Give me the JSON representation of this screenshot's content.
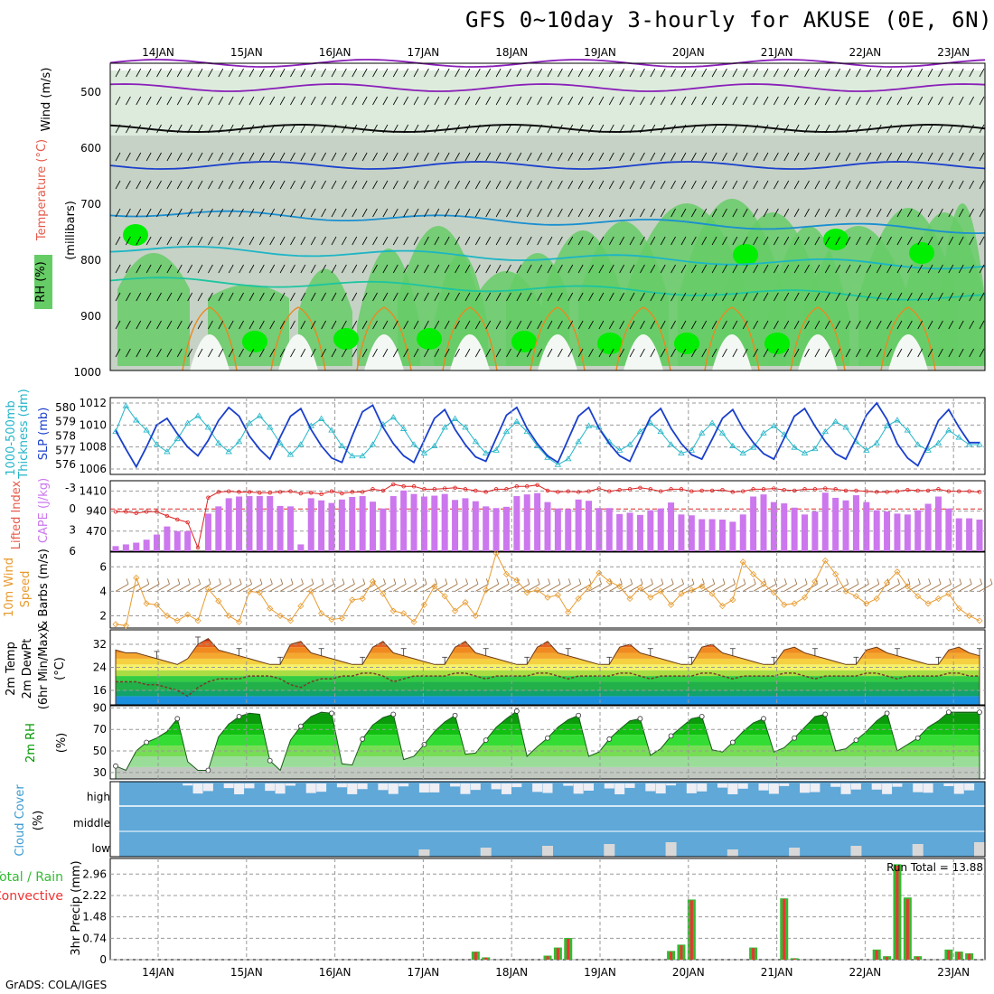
{
  "title": "GFS 0~10day 3-hourly for AKUSE (0E, 6N)",
  "credit": "GrADS: COLA/IGES",
  "days": [
    "14JAN",
    "15JAN",
    "16JAN",
    "17JAN",
    "18JAN",
    "19JAN",
    "20JAN",
    "21JAN",
    "22JAN",
    "23JAN"
  ],
  "colors": {
    "rh_light": "#d4e6d4",
    "rh_mid": "#c0ccc0",
    "rh_green": "#66cc66",
    "rh_bright": "#00ee00",
    "slp": "#1a3fcc",
    "thickness": "#22b5c8",
    "cape": "#cc77ee",
    "li": "#dd2222",
    "wind": "#e89a2e",
    "barb": "#9a6a3a",
    "rh2m": "#009900",
    "cloud": "#5fa8d8",
    "cloud_gap": "#eeeef5",
    "precip_total": "#33bb33",
    "precip_conv": "#ee3333"
  },
  "panels": {
    "upper": {
      "label_rh": "RH (%)",
      "label_temp": "Temperature",
      "label_temp_unit": "(°C)",
      "label_wind": "Wind",
      "label_wind_unit": "(m/s)",
      "yunit": "(millibars)",
      "levels": [
        "500",
        "600",
        "700",
        "800",
        "900",
        "1000"
      ]
    },
    "slp": {
      "label_thick": "1000-500mb",
      "label_thick2": "Thickness (dm)",
      "label_slp": "SLP (mb)",
      "left_ticks": [
        "580",
        "579",
        "578",
        "577",
        "576"
      ],
      "right_ticks": [
        "1012",
        "1010",
        "1008",
        "1006"
      ]
    },
    "cape": {
      "label_li": "Lifted Index",
      "label_cape": "CAPE (J/kg)",
      "left_ticks": [
        "-3",
        "0",
        "3",
        "6"
      ],
      "right_ticks": [
        "1410",
        "940",
        "470"
      ]
    },
    "wind10": {
      "label1": "10m Wind",
      "label2": "Speed",
      "label3": "& Barbs",
      "unit": "(m/s)",
      "ticks": [
        "6",
        "4",
        "2"
      ]
    },
    "temp2m": {
      "label1": "2m Temp",
      "label2": "2m DewPt",
      "label3": "(6hr Min/Max)",
      "unit": "(°C)",
      "ticks": [
        "32",
        "24",
        "16"
      ]
    },
    "rh2m": {
      "label": "2m RH",
      "unit": "(%)",
      "ticks": [
        "90",
        "70",
        "50",
        "30"
      ]
    },
    "cloud": {
      "label": "Cloud Cover",
      "unit": "(%)",
      "levels": [
        "high",
        "middle",
        "low"
      ]
    },
    "precip": {
      "label1": "Total / Rain",
      "label2": "Convective",
      "unit": "3hr Precip (mm)",
      "ticks": [
        "2.96",
        "2.22",
        "1.48",
        "0.74",
        "0"
      ],
      "run_total": "Run Total = 13.88"
    }
  },
  "chart_data": [
    {
      "type": "line",
      "name": "slp_thickness",
      "ylabel_left": "1000-500mb Thickness (dm)",
      "ylabel_right": "SLP (mb)",
      "series": [
        {
          "name": "SLP (mb)",
          "axis": "right",
          "ylim": [
            1006,
            1012
          ],
          "values": [
            1009.5,
            1007.8,
            1006.2,
            1008.0,
            1010.0,
            1010.6,
            1009.2,
            1008.0,
            1007.2,
            1008.6,
            1010.4,
            1011.6,
            1010.8,
            1009.0,
            1007.8,
            1006.9,
            1008.9,
            1010.8,
            1011.5,
            1009.6,
            1008.1,
            1007.0,
            1006.6,
            1009.0,
            1011.2,
            1011.8,
            1009.8,
            1008.3,
            1007.2,
            1006.6,
            1008.6,
            1010.6,
            1011.4,
            1009.6,
            1008.2,
            1007.1,
            1006.7,
            1008.8,
            1010.9,
            1011.6,
            1009.7,
            1008.3,
            1007.2,
            1006.6,
            1008.7,
            1010.8,
            1011.6,
            1009.7,
            1008.3,
            1007.2,
            1006.7,
            1008.7,
            1010.7,
            1011.5,
            1009.7,
            1008.3,
            1007.3,
            1006.9,
            1008.7,
            1010.6,
            1011.4,
            1009.7,
            1008.4,
            1007.4,
            1006.9,
            1008.8,
            1010.8,
            1011.5,
            1009.9,
            1008.5,
            1007.4,
            1006.9,
            1008.8,
            1010.9,
            1012.0,
            1010.5,
            1008.3,
            1007.0,
            1006.3,
            1008.2,
            1010.4,
            1011.4,
            1009.8,
            1008.4,
            1008.4
          ]
        },
        {
          "name": "Thickness (dm)",
          "axis": "left",
          "ylim": [
            575.7,
            580.3
          ],
          "values": [
            578.3,
            580.1,
            579.1,
            578.4,
            577.4,
            576.9,
            577.8,
            578.9,
            579.4,
            578.6,
            577.5,
            576.9,
            577.6,
            578.9,
            579.4,
            578.6,
            577.5,
            576.7,
            577.4,
            578.7,
            579.2,
            578.4,
            577.3,
            576.6,
            576.6,
            577.4,
            578.8,
            579.3,
            578.5,
            577.4,
            576.8,
            577.3,
            578.6,
            579.2,
            578.6,
            577.6,
            576.8,
            577.0,
            578.3,
            579.0,
            578.3,
            577.3,
            576.5,
            576.0,
            576.4,
            577.6,
            578.7,
            578.6,
            577.6,
            577.0,
            577.4,
            578.3,
            578.9,
            578.3,
            577.4,
            576.8,
            577.0,
            578.2,
            578.9,
            578.2,
            577.3,
            576.8,
            577.2,
            578.2,
            578.7,
            578.1,
            577.2,
            576.8,
            577.1,
            578.3,
            579.0,
            578.6,
            577.6,
            577.0,
            577.5,
            578.7,
            579.1,
            578.4,
            577.4,
            577.0,
            577.5,
            578.4,
            577.9,
            577.4,
            577.4
          ]
        }
      ]
    },
    {
      "type": "bar",
      "name": "cape_li",
      "ylabel_left": "Lifted Index",
      "ylabel_right": "CAPE (J/kg)",
      "ylim_cape": [
        0,
        1650
      ],
      "ylim_li": [
        6,
        -4
      ],
      "cape": [
        120,
        160,
        200,
        270,
        390,
        580,
        470,
        470,
        0,
        880,
        1050,
        1240,
        1280,
        1290,
        1290,
        1290,
        1060,
        1050,
        160,
        1240,
        1190,
        1130,
        1210,
        1270,
        1290,
        1160,
        1000,
        1290,
        1420,
        1340,
        1280,
        1300,
        1340,
        1200,
        1240,
        1170,
        1050,
        1010,
        1040,
        1290,
        1330,
        1360,
        1150,
        1000,
        990,
        1210,
        1180,
        1010,
        1010,
        870,
        900,
        850,
        960,
        1000,
        1140,
        860,
        840,
        750,
        750,
        740,
        690,
        860,
        1280,
        1330,
        1150,
        1120,
        1020,
        860,
        930,
        1370,
        1250,
        1190,
        1310,
        1150,
        960,
        930,
        880,
        860,
        960,
        1110,
        1280,
        1000,
        770,
        770,
        740
      ],
      "li": [
        0.4,
        0.4,
        0.6,
        0.4,
        0.4,
        1.0,
        1.5,
        1.9,
        5.5,
        -1.6,
        -2.4,
        -2.5,
        -2.4,
        -2.4,
        -2.3,
        -2.3,
        -2.4,
        -2.5,
        -2.2,
        -2.3,
        -2.1,
        -2.5,
        -2.2,
        -2.4,
        -2.4,
        -2.8,
        -2.6,
        -3.5,
        -3.2,
        -3.2,
        -2.8,
        -2.8,
        -2.9,
        -3.0,
        -2.8,
        -2.6,
        -2.4,
        -2.8,
        -2.8,
        -3.2,
        -3.2,
        -3.4,
        -2.6,
        -2.4,
        -2.5,
        -2.4,
        -2.5,
        -2.9,
        -2.5,
        -2.7,
        -2.8,
        -3.0,
        -2.8,
        -2.5,
        -2.8,
        -2.8,
        -2.5,
        -2.6,
        -2.6,
        -2.7,
        -2.4,
        -2.5,
        -2.8,
        -2.8,
        -2.9,
        -2.7,
        -2.6,
        -2.8,
        -2.8,
        -2.9,
        -2.8,
        -2.6,
        -2.6,
        -2.5,
        -2.4,
        -2.4,
        -2.5,
        -2.7,
        -2.6,
        -2.6,
        -2.8,
        -2.5,
        -2.5,
        -2.5,
        -2.4
      ]
    },
    {
      "type": "line",
      "name": "wind10m",
      "ylabel": "10m Wind Speed & Barbs (m/s)",
      "ylim": [
        1,
        7.2
      ],
      "values": [
        1.3,
        1.2,
        5.1,
        3.0,
        2.9,
        2.0,
        1.6,
        2.1,
        1.6,
        4.2,
        3.2,
        2.0,
        1.5,
        4.0,
        3.9,
        2.6,
        2.0,
        1.6,
        2.8,
        4.0,
        2.2,
        1.7,
        1.8,
        3.3,
        3.4,
        4.8,
        3.8,
        2.4,
        2.2,
        1.5,
        2.9,
        4.4,
        3.6,
        2.4,
        3.1,
        2.0,
        4.1,
        7.1,
        5.4,
        4.9,
        3.9,
        4.1,
        3.5,
        3.7,
        2.3,
        3.4,
        4.3,
        5.5,
        4.8,
        4.4,
        3.4,
        4.3,
        3.5,
        4.0,
        2.9,
        3.8,
        4.1,
        4.4,
        3.8,
        2.8,
        3.3,
        6.4,
        5.4,
        4.6,
        3.9,
        2.9,
        3.0,
        3.5,
        4.8,
        6.5,
        5.4,
        4.0,
        3.6,
        3.0,
        3.4,
        4.7,
        5.6,
        4.4,
        3.6,
        3.0,
        3.4,
        3.8,
        2.6,
        2.0,
        1.6
      ]
    },
    {
      "type": "area",
      "name": "temp2m",
      "ylabel": "2m Temp / 2m DewPt (°C)",
      "ylim": [
        11,
        37
      ],
      "temp": [
        30,
        29,
        29,
        28,
        27,
        26,
        25,
        27,
        32,
        34,
        30,
        29,
        28,
        27,
        26,
        25,
        25,
        32,
        33,
        29,
        28,
        27,
        26,
        25,
        25,
        31,
        33,
        29,
        28,
        27,
        26,
        25,
        25,
        31,
        33,
        29,
        28,
        27,
        26,
        25,
        25,
        31,
        33,
        29,
        28,
        27,
        26,
        25,
        25,
        31,
        32,
        29,
        28,
        27,
        26,
        25,
        25,
        31,
        32,
        29,
        28,
        27,
        26,
        25,
        25,
        30,
        31,
        29,
        28,
        27,
        26,
        25,
        25,
        30,
        31,
        29,
        28,
        27,
        26,
        25,
        25,
        30,
        31,
        29,
        28
      ],
      "dewpt": [
        19,
        19,
        19,
        18,
        18,
        17,
        16,
        14,
        17,
        19,
        20,
        20,
        20,
        21,
        21,
        21,
        20,
        18,
        17,
        19,
        20,
        20,
        21,
        21,
        22,
        22,
        21,
        19,
        20,
        21,
        21,
        21,
        21,
        22,
        22,
        21,
        20,
        21,
        21,
        21,
        21,
        22,
        22,
        21,
        20,
        21,
        21,
        21,
        21,
        22,
        22,
        21,
        20,
        21,
        21,
        21,
        21,
        22,
        22,
        21,
        20,
        21,
        21,
        21,
        21,
        22,
        22,
        21,
        20,
        21,
        21,
        21,
        21,
        22,
        22,
        21,
        20,
        21,
        21,
        21,
        21,
        22,
        22,
        21,
        21
      ]
    },
    {
      "type": "area",
      "name": "rh2m",
      "ylabel": "2m RH (%)",
      "ylim": [
        24,
        92
      ],
      "values": [
        36,
        32,
        50,
        58,
        62,
        68,
        80,
        40,
        32,
        32,
        63,
        75,
        82,
        85,
        84,
        41,
        32,
        60,
        73,
        82,
        86,
        85,
        38,
        37,
        61,
        74,
        81,
        84,
        42,
        45,
        56,
        68,
        77,
        83,
        47,
        48,
        60,
        72,
        80,
        87,
        45,
        54,
        62,
        72,
        79,
        83,
        45,
        49,
        61,
        70,
        78,
        80,
        46,
        52,
        64,
        72,
        80,
        82,
        51,
        49,
        58,
        68,
        76,
        80,
        49,
        53,
        62,
        72,
        82,
        84,
        50,
        52,
        60,
        68,
        78,
        85,
        50,
        56,
        62,
        72,
        78,
        86,
        86,
        86,
        86
      ]
    },
    {
      "type": "bar",
      "name": "cloud_cover",
      "ylabel": "Cloud Cover (%)",
      "levels": [
        "high",
        "middle",
        "low"
      ]
    },
    {
      "type": "bar",
      "name": "precip3hr",
      "ylabel": "3hr Precip (mm)",
      "ylim": [
        0,
        3.5
      ],
      "total": [
        0,
        0,
        0,
        0,
        0,
        0,
        0,
        0,
        0,
        0,
        0,
        0,
        0,
        0,
        0,
        0,
        0,
        0,
        0,
        0,
        0,
        0,
        0,
        0,
        0,
        0,
        0,
        0,
        0,
        0,
        0,
        0,
        0,
        0,
        0,
        0.28,
        0.08,
        0,
        0,
        0,
        0,
        0,
        0.14,
        0.42,
        0.75,
        0,
        0,
        0,
        0,
        0,
        0,
        0,
        0,
        0,
        0.3,
        0.52,
        2.08,
        0,
        0,
        0,
        0,
        0,
        0.42,
        0,
        0,
        2.12,
        0.05,
        0,
        0,
        0,
        0,
        0,
        0,
        0,
        0.35,
        0.12,
        3.3,
        2.15,
        0.12,
        0,
        0,
        0.35,
        0.28,
        0.22,
        0
      ],
      "conv": [
        0,
        0,
        0,
        0,
        0,
        0,
        0,
        0,
        0,
        0,
        0,
        0,
        0,
        0,
        0,
        0,
        0,
        0,
        0,
        0,
        0,
        0,
        0,
        0,
        0,
        0,
        0,
        0,
        0,
        0,
        0,
        0,
        0,
        0,
        0,
        0.26,
        0.07,
        0,
        0,
        0,
        0,
        0,
        0.12,
        0.4,
        0.72,
        0,
        0,
        0,
        0,
        0,
        0,
        0,
        0,
        0,
        0.27,
        0.5,
        2.05,
        0,
        0,
        0,
        0,
        0,
        0.4,
        0,
        0,
        2.1,
        0.04,
        0,
        0,
        0,
        0,
        0,
        0,
        0,
        0.32,
        0.1,
        3.25,
        2.1,
        0.1,
        0,
        0,
        0.32,
        0.26,
        0.2,
        0
      ]
    }
  ]
}
